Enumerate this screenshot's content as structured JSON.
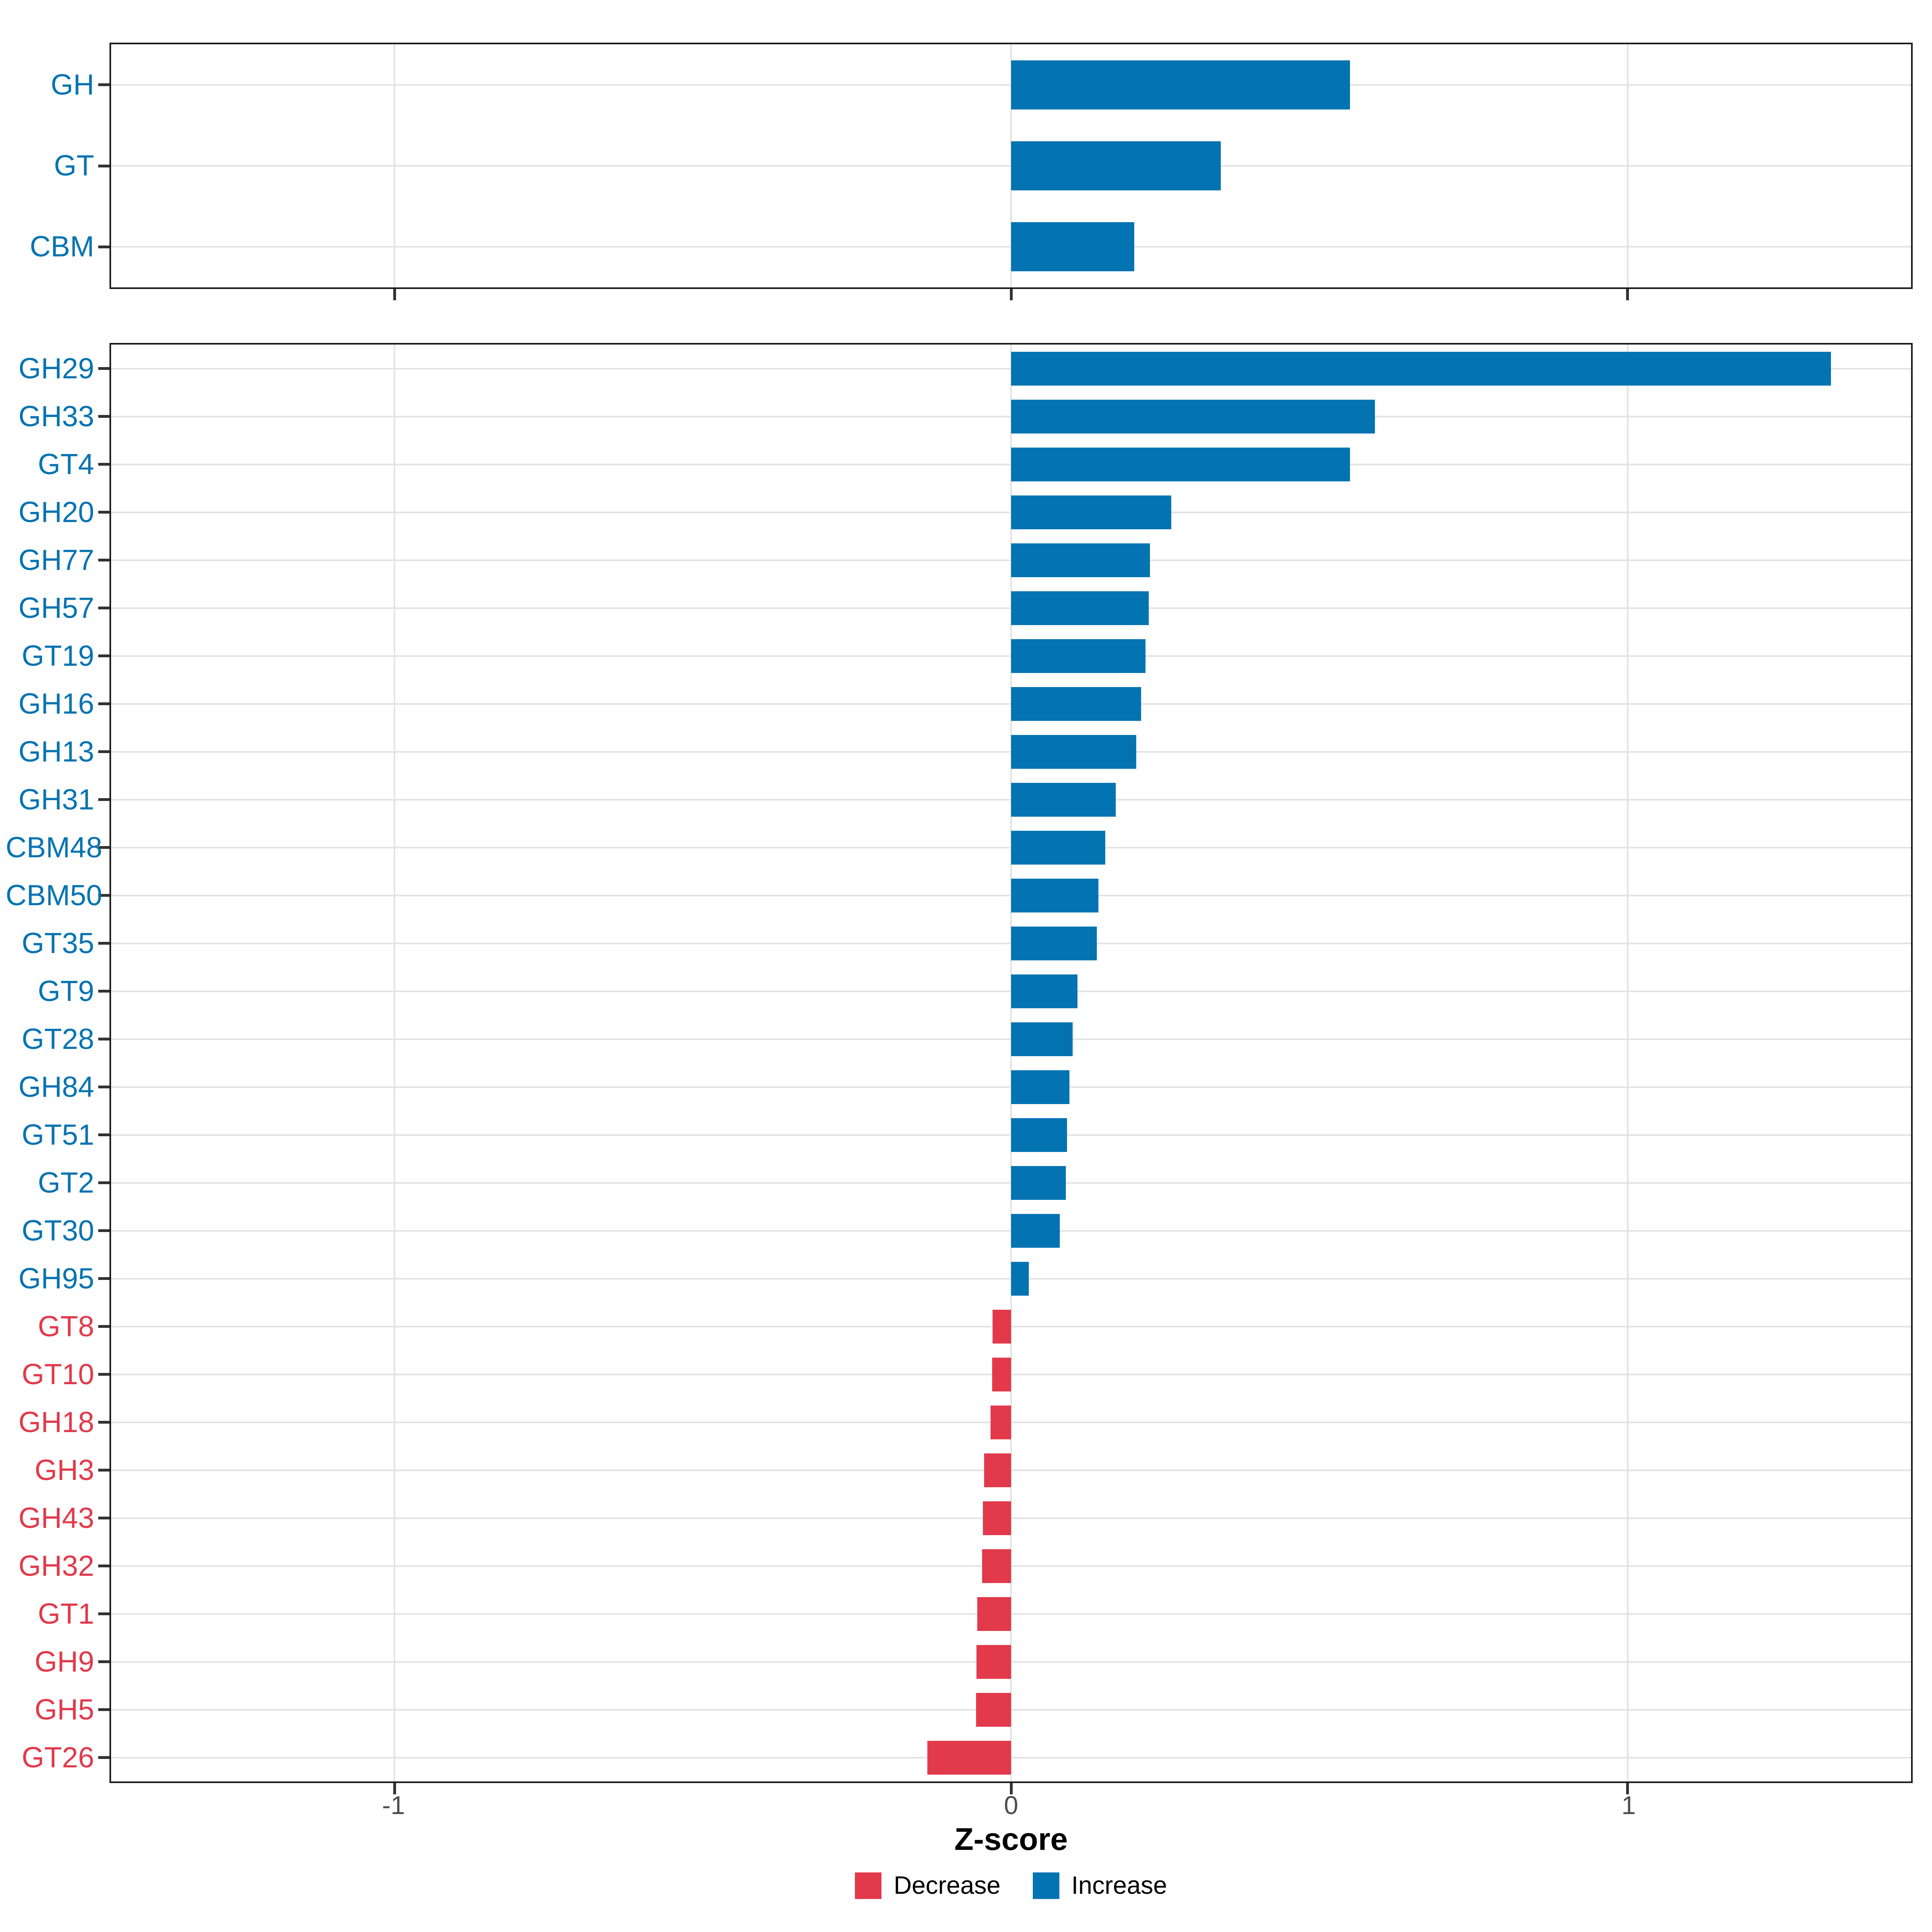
{
  "colors": {
    "increase": "#0473b2",
    "decrease": "#e2394b",
    "grid": "#e3e3e3",
    "panel_border": "#1a1a1a",
    "tick_mark": "#333333",
    "tick_label": "#4d4d4d",
    "axis_title": "#000000",
    "background": "#ffffff"
  },
  "chart_data": {
    "type": "bar",
    "orientation": "horizontal",
    "title": "",
    "xlabel": "Z-score",
    "ylabel": "",
    "xlim": [
      -1.46,
      1.46
    ],
    "xticks": [
      -1,
      0,
      1
    ],
    "xtick_labels": [
      "-1",
      "0",
      "1"
    ],
    "grid": true,
    "legend_position": "bottom",
    "legend": {
      "entries": [
        {
          "label": "Decrease",
          "key": "decrease",
          "color": "#e2394b"
        },
        {
          "label": "Increase",
          "key": "increase",
          "color": "#0473b2"
        }
      ]
    },
    "panels": [
      {
        "name": "enzyme-class-summary",
        "categories": [
          "GH",
          "GT",
          "CBM"
        ],
        "values": [
          0.55,
          0.34,
          0.2
        ]
      },
      {
        "name": "enzyme-families",
        "categories": [
          "GH29",
          "GH33",
          "GT4",
          "GH20",
          "GH77",
          "GH57",
          "GT19",
          "GH16",
          "GH13",
          "GH31",
          "CBM48",
          "CBM50",
          "GT35",
          "GT9",
          "GT28",
          "GH84",
          "GT51",
          "GT2",
          "GT30",
          "GH95",
          "GT8",
          "GT10",
          "GH18",
          "GH3",
          "GH43",
          "GH32",
          "GT1",
          "GH9",
          "GH5",
          "GT26"
        ],
        "values": [
          1.33,
          0.59,
          0.55,
          0.26,
          0.225,
          0.223,
          0.218,
          0.211,
          0.203,
          0.17,
          0.153,
          0.142,
          0.139,
          0.108,
          0.1,
          0.095,
          0.091,
          0.089,
          0.079,
          0.029,
          -0.03,
          -0.031,
          -0.033,
          -0.044,
          -0.046,
          -0.047,
          -0.055,
          -0.056,
          -0.057,
          -0.136
        ]
      }
    ]
  }
}
